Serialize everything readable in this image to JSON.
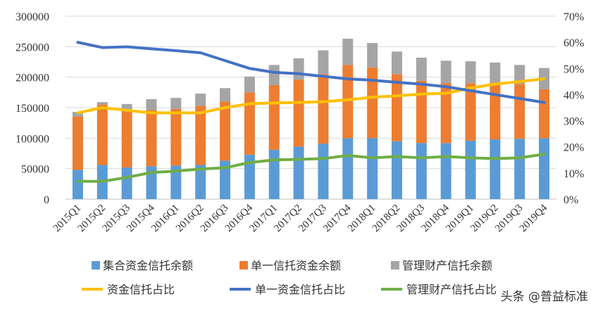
{
  "chart_data": {
    "type": "bar",
    "stacked": true,
    "categories": [
      "2015Q1",
      "2015Q2",
      "2015Q3",
      "2015Q4",
      "2016Q1",
      "2016Q2",
      "2016Q3",
      "2016Q4",
      "2017Q1",
      "2017Q2",
      "2017Q3",
      "2017Q4",
      "2018Q1",
      "2018Q2",
      "2018Q3",
      "2018Q4",
      "2019Q1",
      "2019Q2",
      "2019Q3",
      "2019Q4"
    ],
    "ylim": [
      0,
      300000
    ],
    "yticks": [
      "0",
      "50000",
      "100000",
      "150000",
      "200000",
      "250000",
      "300000"
    ],
    "y2lim": [
      0,
      70
    ],
    "y2ticks": [
      "0%",
      "10%",
      "20%",
      "30%",
      "40%",
      "50%",
      "60%",
      "70%"
    ],
    "grid": true,
    "legend_position": "bottom",
    "series": [
      {
        "name": "集合资金信托余额",
        "kind": "bar",
        "axis": "left",
        "color": "#5B9BD5",
        "values": [
          48000,
          56000,
          52000,
          54000,
          55000,
          56000,
          63000,
          73000,
          81000,
          86000,
          91000,
          100000,
          100000,
          95000,
          92000,
          92000,
          96000,
          98000,
          99000,
          100000
        ]
      },
      {
        "name": "单一信托资金余额",
        "kind": "bar",
        "axis": "left",
        "color": "#ED7D31",
        "values": [
          87000,
          99000,
          93000,
          92000,
          93000,
          97000,
          97000,
          102000,
          106000,
          110000,
          114000,
          120000,
          116000,
          110000,
          102000,
          98000,
          94000,
          93000,
          90000,
          80000
        ]
      },
      {
        "name": "管理财产信托余额",
        "kind": "bar",
        "axis": "left",
        "color": "#A5A5A5",
        "values": [
          8000,
          4000,
          11000,
          18000,
          18000,
          20000,
          22000,
          26000,
          33000,
          35000,
          39000,
          43000,
          40000,
          37000,
          38000,
          37000,
          36000,
          33000,
          31000,
          35000
        ]
      },
      {
        "name": "资金信托占比",
        "kind": "line",
        "axis": "right",
        "color": "#FFC000",
        "values": [
          33,
          35,
          34,
          33,
          33,
          33,
          35,
          36.5,
          36.8,
          37,
          37.3,
          38,
          39,
          39.5,
          40.2,
          40.5,
          42.5,
          44,
          45,
          46
        ]
      },
      {
        "name": "单一资金信托占比",
        "kind": "line",
        "axis": "right",
        "color": "#4472C4",
        "values": [
          60,
          58,
          58.3,
          57.5,
          56.8,
          56,
          53,
          50,
          48.5,
          48,
          47,
          46,
          45.5,
          44.7,
          44,
          43,
          41.5,
          40,
          38.5,
          37
        ]
      },
      {
        "name": "管理财产信托占比",
        "kind": "line",
        "axis": "right",
        "color": "#70AD47",
        "values": [
          6.8,
          6.8,
          8.3,
          10.2,
          10.7,
          11.5,
          12,
          14,
          15,
          15.2,
          15.5,
          16.7,
          15.8,
          16.3,
          15.8,
          16.3,
          15.8,
          15.5,
          15.8,
          17.2
        ]
      }
    ]
  },
  "watermark": "头条 @普益标准"
}
